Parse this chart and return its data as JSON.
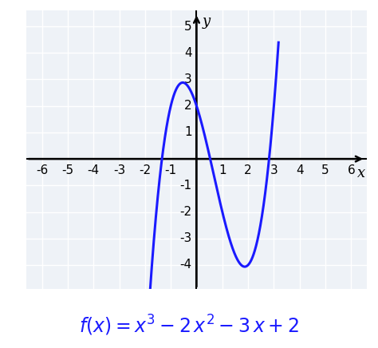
{
  "formula_text": "$f(x) = x^3 - 2\\,x^2 - 3\\,x + 2$",
  "xlim": [
    -6.6,
    6.6
  ],
  "ylim": [
    -4.9,
    5.6
  ],
  "xticks": [
    -6,
    -5,
    -4,
    -3,
    -2,
    -1,
    1,
    2,
    3,
    4,
    5,
    6
  ],
  "yticks": [
    -4,
    -3,
    -2,
    -1,
    1,
    2,
    3,
    4,
    5
  ],
  "xlabel": "x",
  "ylabel": "y",
  "curve_color": "#1a1aff",
  "curve_linewidth": 2.2,
  "background_color": "#eef2f7",
  "grid_color": "#ffffff",
  "formula_color": "#1a1aff",
  "formula_fontsize": 17,
  "axis_label_fontsize": 13,
  "tick_fontsize": 11,
  "x_curve_start": -1.82,
  "x_curve_end": 3.18
}
